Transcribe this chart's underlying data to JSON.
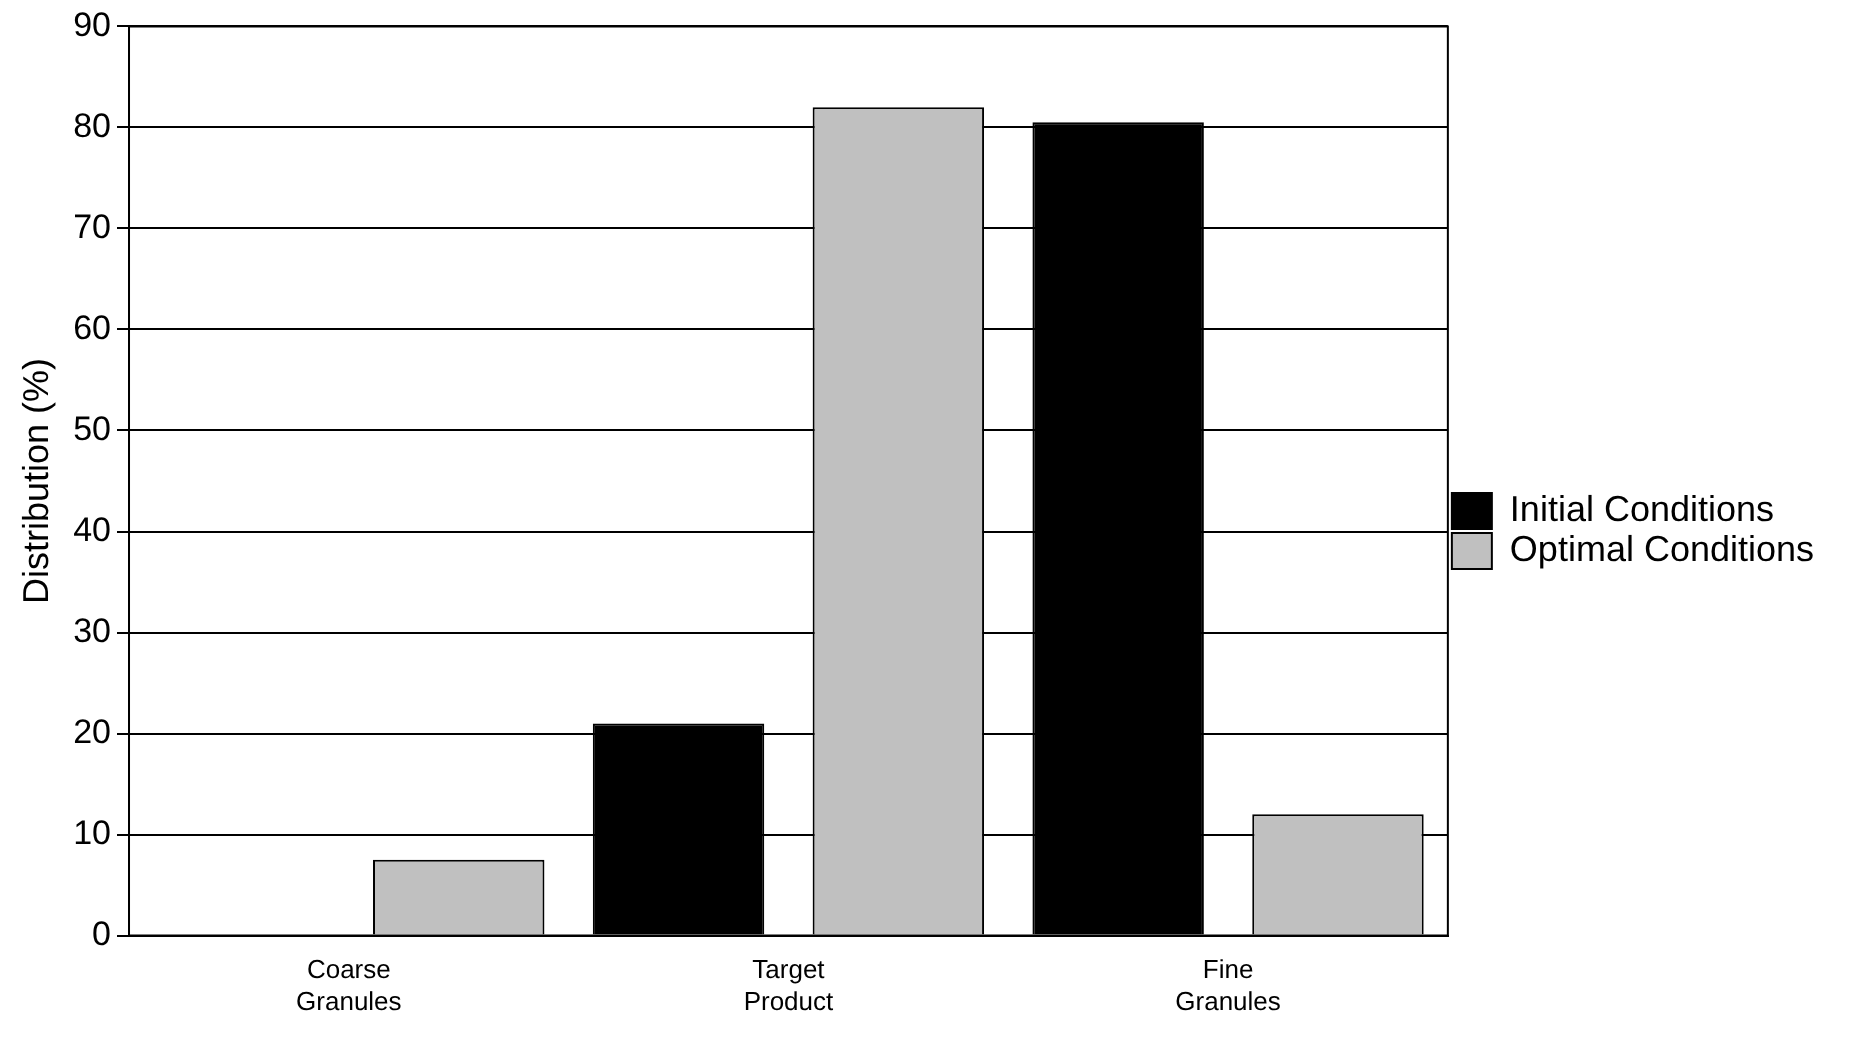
{
  "chart_data": {
    "type": "bar",
    "ylabel": "Distribution (%)",
    "categories": [
      "Coarse Granules",
      "Target Product",
      "Fine Granules"
    ],
    "series": [
      {
        "name": "Initial Conditions",
        "color": "#000000",
        "values": [
          0,
          21,
          80.5
        ]
      },
      {
        "name": "Optimal Conditions",
        "color": "#c0c0c0",
        "values": [
          7.5,
          82,
          12
        ]
      }
    ],
    "ylim": [
      0,
      90
    ],
    "yticks": [
      0,
      10,
      20,
      30,
      40,
      50,
      60,
      70,
      80,
      90
    ],
    "grid": "y",
    "legend": "right"
  }
}
